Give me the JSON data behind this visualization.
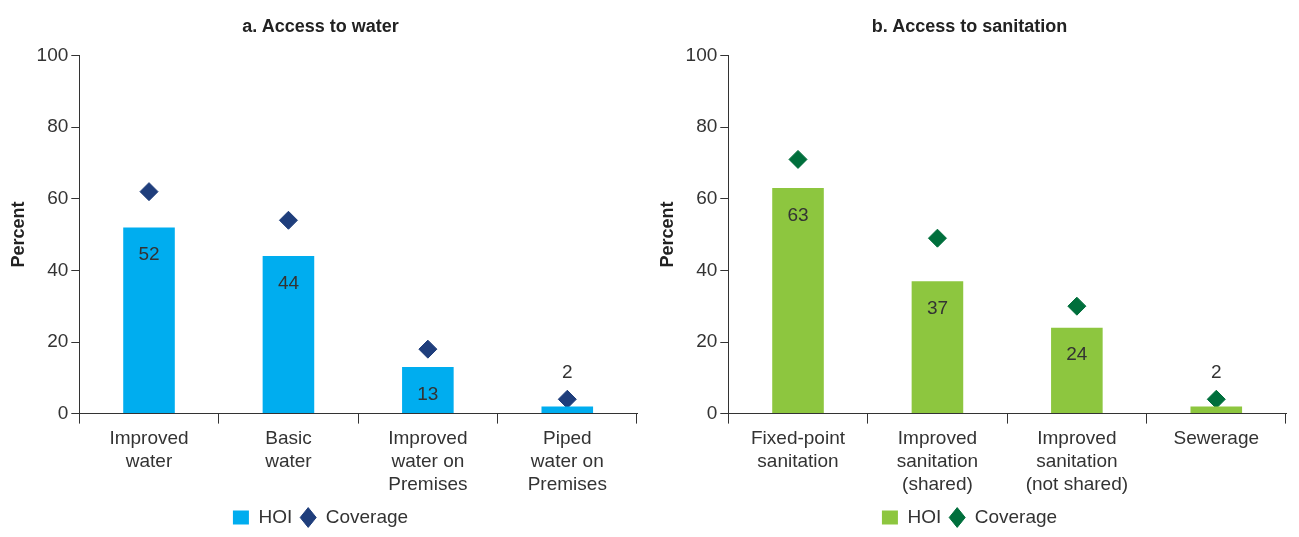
{
  "chart_data": [
    {
      "type": "bar",
      "title": "a. Access to water",
      "ylabel": "Percent",
      "categories": [
        "Improved water",
        "Basic water",
        "Improved water on Premises",
        "Piped water on Premises"
      ],
      "series": [
        {
          "name": "HOI",
          "type": "bar",
          "color": "#00adef",
          "values": [
            52,
            44,
            13,
            2
          ],
          "value_labels": [
            "52",
            "44",
            "13",
            "2"
          ]
        },
        {
          "name": "Coverage",
          "type": "scatter",
          "marker": "diamond",
          "color": "#1f3e7c",
          "x": [
            "Improved water",
            "Basic water",
            "Improved water on Premises",
            "Piped water on Premises"
          ],
          "values": [
            62,
            54,
            18,
            4
          ]
        }
      ],
      "ylim": [
        0,
        100
      ],
      "yticks": [
        0,
        20,
        40,
        60,
        80,
        100
      ],
      "grid": false,
      "legend": "bottom"
    },
    {
      "type": "bar",
      "title": "b. Access to sanitation",
      "ylabel": "Percent",
      "categories": [
        "Fixed-point sanitation",
        "Improved sanitation (shared)",
        "Improved sanitation (not shared)",
        "Sewerage"
      ],
      "series": [
        {
          "name": "HOI",
          "type": "bar",
          "color": "#8dc63f",
          "values": [
            63,
            37,
            24,
            2
          ],
          "value_labels": [
            "63",
            "37",
            "24",
            "2"
          ]
        },
        {
          "name": "Coverage",
          "type": "scatter",
          "marker": "diamond",
          "color": "#006f3c",
          "x": [
            "Fixed-point sanitation",
            "Improved sanitation (shared)",
            "Improved sanitation (not shared)",
            "Sewerage"
          ],
          "values": [
            71,
            49,
            30,
            4
          ]
        }
      ],
      "ylim": [
        0,
        100
      ],
      "yticks": [
        0,
        20,
        40,
        60,
        80,
        100
      ],
      "grid": false,
      "legend": "bottom"
    }
  ]
}
